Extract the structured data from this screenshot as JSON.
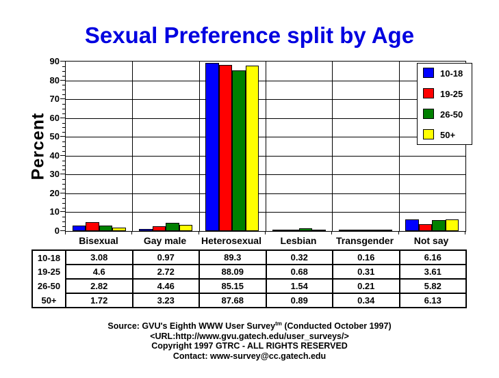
{
  "title": "Sexual Preference split by Age",
  "colors": {
    "title": "#0000e0",
    "axis_text": "#000000",
    "background": "#ffffff",
    "series_blue": "#0000ff",
    "series_red": "#ff0000",
    "series_green": "#008000",
    "series_yellow": "#ffff00"
  },
  "chart_data": {
    "type": "bar",
    "title": "Sexual Preference split by Age",
    "xlabel": "",
    "ylabel": "Percent",
    "ylim": [
      0,
      90
    ],
    "ytick_step": 10,
    "yminor_step": 2.5,
    "grid": true,
    "legend_position": "top-right-overlay",
    "categories": [
      "Bisexual",
      "Gay male",
      "Heterosexual",
      "Lesbian",
      "Transgender",
      "Not say"
    ],
    "series": [
      {
        "name": "10-18",
        "color": "#0000ff",
        "values": [
          3.08,
          0.97,
          89.3,
          0.32,
          0.16,
          6.16
        ]
      },
      {
        "name": "19-25",
        "color": "#ff0000",
        "values": [
          4.6,
          2.72,
          88.09,
          0.68,
          0.31,
          3.61
        ]
      },
      {
        "name": "26-50",
        "color": "#008000",
        "values": [
          2.82,
          4.46,
          85.15,
          1.54,
          0.21,
          5.82
        ]
      },
      {
        "name": "50+",
        "color": "#ffff00",
        "values": [
          1.72,
          3.23,
          87.68,
          0.89,
          0.34,
          6.13
        ]
      }
    ]
  },
  "footer": {
    "line1_pre": "Source: GVU's Eighth WWW User Survey",
    "line1_sup": "tm",
    "line1_post": " (Conducted October 1997)",
    "line2": "<URL:http://www.gvu.gatech.edu/user_surveys/>",
    "line3": "Copyright 1997 GTRC - ALL RIGHTS RESERVED",
    "line4": "Contact: www-survey@cc.gatech.edu"
  }
}
